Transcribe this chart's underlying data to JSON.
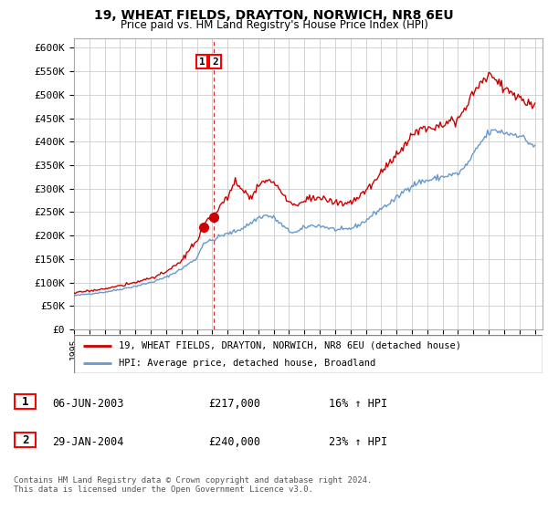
{
  "title": "19, WHEAT FIELDS, DRAYTON, NORWICH, NR8 6EU",
  "subtitle": "Price paid vs. HM Land Registry's House Price Index (HPI)",
  "legend_line1": "19, WHEAT FIELDS, DRAYTON, NORWICH, NR8 6EU (detached house)",
  "legend_line2": "HPI: Average price, detached house, Broadland",
  "annotation1_date": "06-JUN-2003",
  "annotation1_price": "£217,000",
  "annotation1_hpi": "16% ↑ HPI",
  "annotation2_date": "29-JAN-2004",
  "annotation2_price": "£240,000",
  "annotation2_hpi": "23% ↑ HPI",
  "footer": "Contains HM Land Registry data © Crown copyright and database right 2024.\nThis data is licensed under the Open Government Licence v3.0.",
  "line1_color": "#cc0000",
  "line2_color": "#6699cc",
  "vline_color": "#cc0000",
  "ylim": [
    0,
    620000
  ],
  "yticks": [
    0,
    50000,
    100000,
    150000,
    200000,
    250000,
    300000,
    350000,
    400000,
    450000,
    500000,
    550000,
    600000
  ],
  "ytick_labels": [
    "£0",
    "£50K",
    "£100K",
    "£150K",
    "£200K",
    "£250K",
    "£300K",
    "£350K",
    "£400K",
    "£450K",
    "£500K",
    "£550K",
    "£600K"
  ],
  "sale1_x": 2003.43,
  "sale1_y": 217000,
  "sale2_x": 2004.08,
  "sale2_y": 240000,
  "vline_x": 2004.08,
  "xmin": 1995.0,
  "xmax": 2025.5
}
